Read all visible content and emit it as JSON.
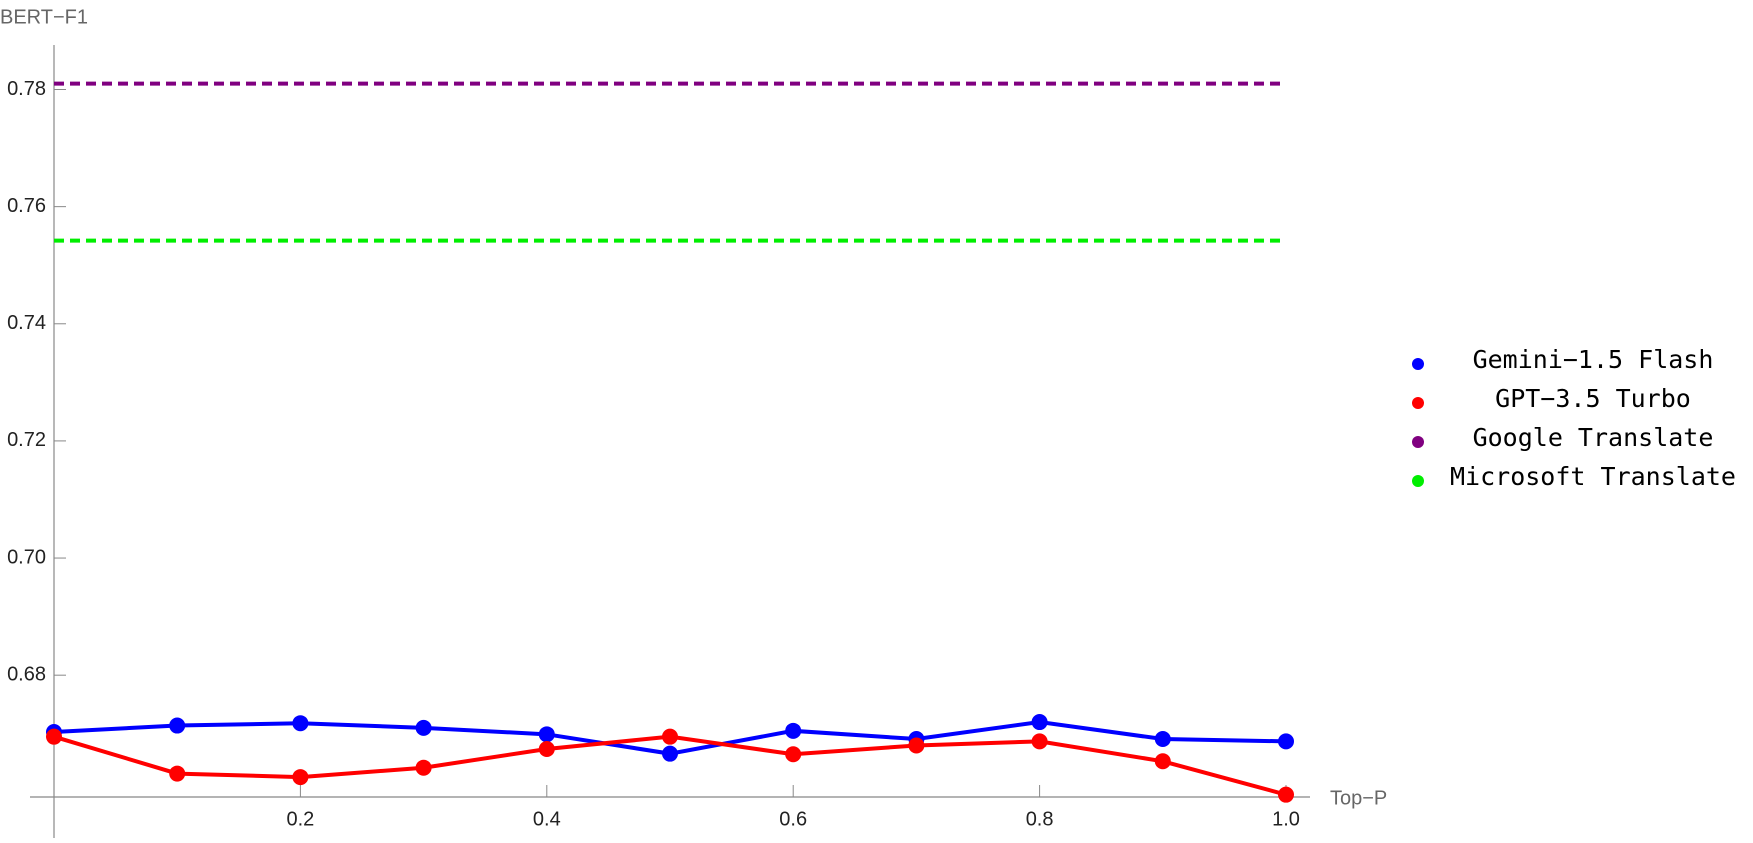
{
  "chart_data": {
    "type": "line",
    "xlabel": "Top−P",
    "ylabel": "BERT−F1",
    "x": [
      0,
      0.1,
      0.2,
      0.3,
      0.4,
      0.5,
      0.6,
      0.7,
      0.8,
      0.9,
      1.0
    ],
    "series": [
      {
        "name": "Gemini−1.5 Flash",
        "color": "#0000ff",
        "values": [
          0.6703,
          0.6714,
          0.6718,
          0.671,
          0.6699,
          0.6666,
          0.6705,
          0.6691,
          0.672,
          0.6691,
          0.6687
        ]
      },
      {
        "name": "GPT−3.5 Turbo",
        "color": "#ff0000",
        "values": [
          0.6695,
          0.6632,
          0.6626,
          0.6642,
          0.6674,
          0.6695,
          0.6665,
          0.668,
          0.6687,
          0.6653,
          0.6596
        ]
      },
      {
        "name": "Google Translate",
        "color": "#800080",
        "value": 0.781,
        "dashed": true
      },
      {
        "name": "Microsoft Translate",
        "color": "#00ee00",
        "value": 0.7542,
        "dashed": true
      }
    ],
    "xlim": [
      0,
      1.0
    ],
    "ylim": [
      0.6592,
      0.7876
    ],
    "xticks": [
      0.2,
      0.4,
      0.6,
      0.8,
      {
        "value": 1.0,
        "label": "1.0"
      }
    ],
    "yticks": [
      0.68,
      {
        "value": 0.7,
        "label": "0.70"
      },
      0.72,
      0.74,
      0.76,
      0.78
    ],
    "legend": "right"
  }
}
